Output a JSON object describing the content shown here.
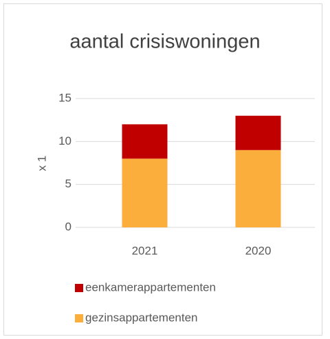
{
  "chart_data": {
    "type": "stacked_bar",
    "title": "aantal crisiswoningen",
    "y_label": "x 1",
    "categories": [
      "2021",
      "2020"
    ],
    "series": [
      {
        "name": "gezinsappartementen",
        "color": "#fbae3c",
        "values": [
          8,
          9
        ]
      },
      {
        "name": "eenkamerappartementen",
        "color": "#c00000",
        "values": [
          4,
          4
        ]
      }
    ],
    "ylim": [
      0,
      15
    ],
    "yticks": [
      0,
      5,
      10,
      15
    ],
    "grid": true,
    "legend": "bottom"
  }
}
